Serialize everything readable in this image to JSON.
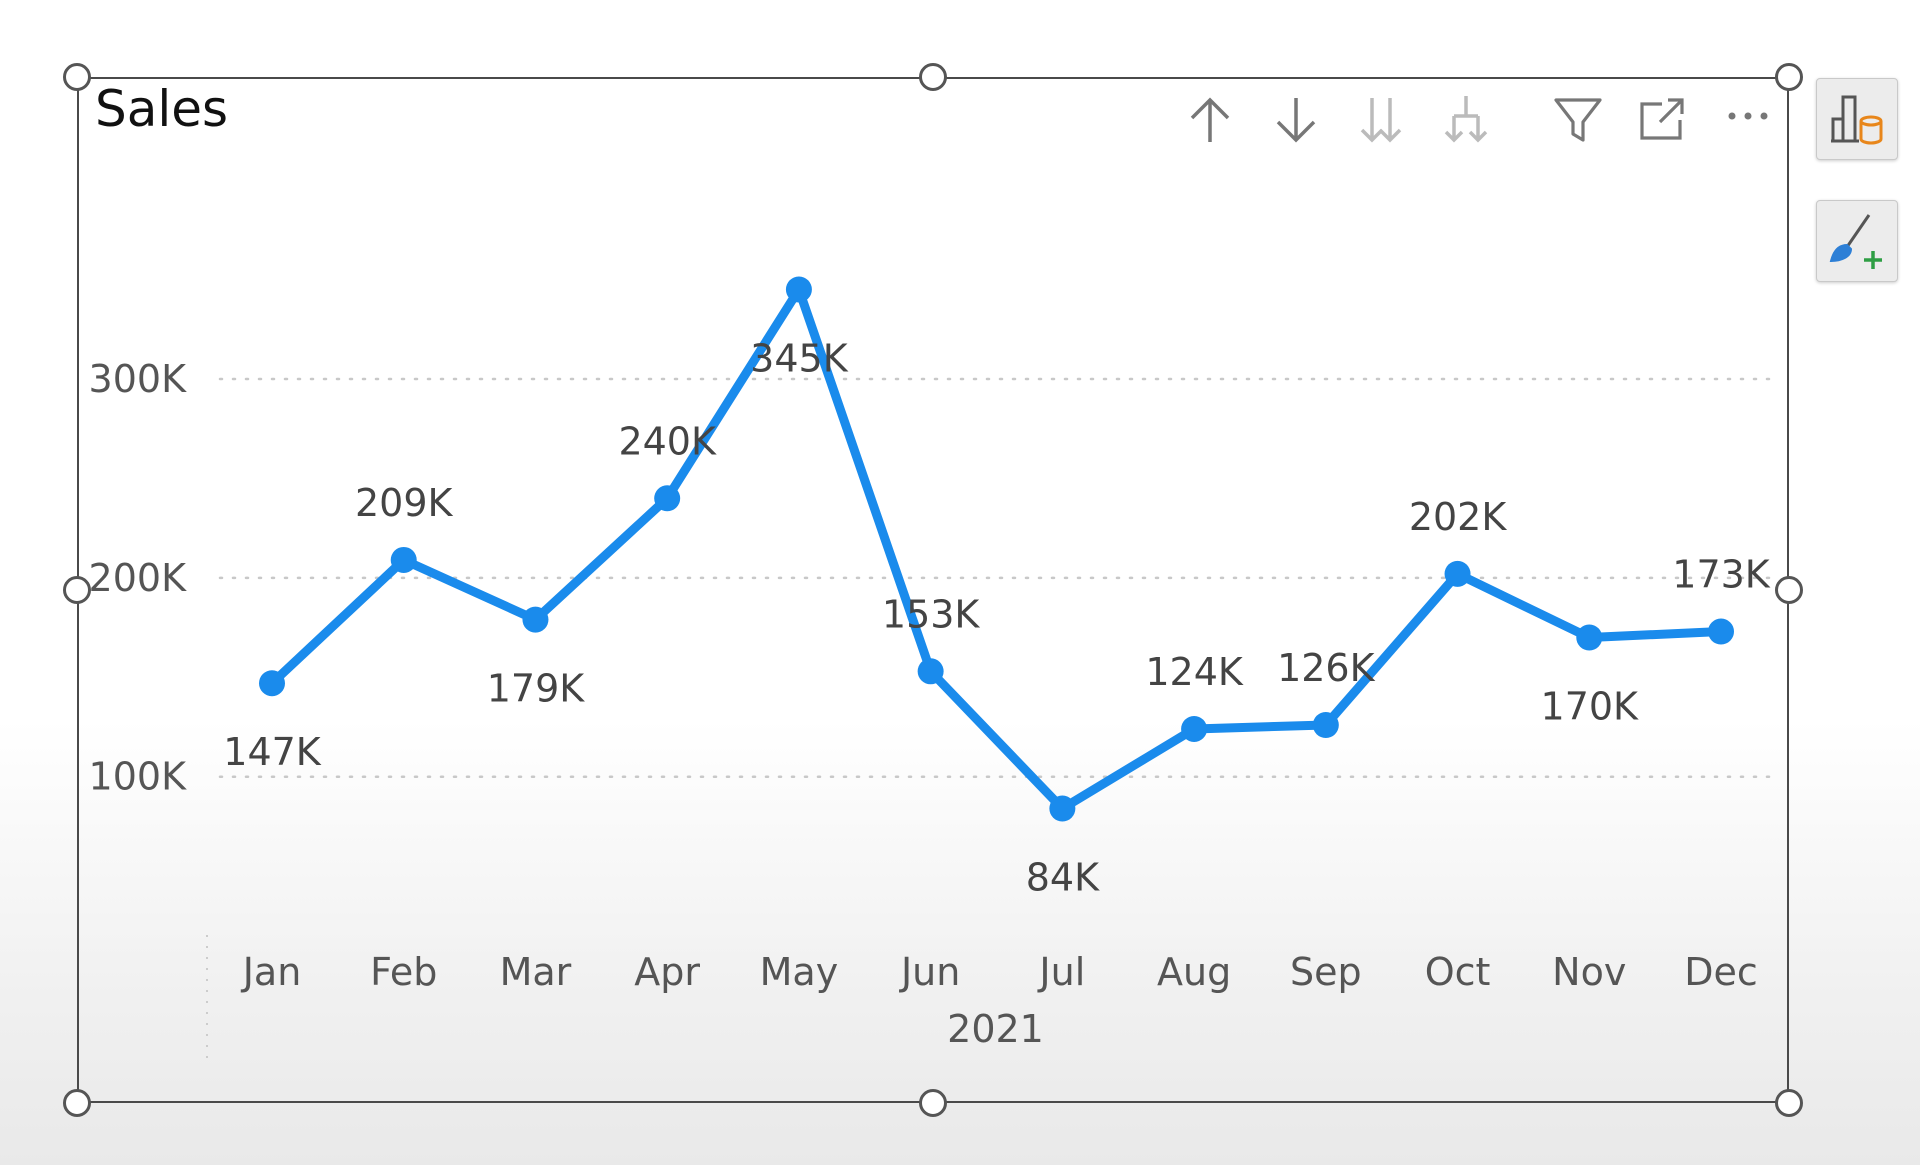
{
  "chart_data": {
    "type": "line",
    "title": "Sales",
    "x": [
      "Jan",
      "Feb",
      "Mar",
      "Apr",
      "May",
      "Jun",
      "Jul",
      "Aug",
      "Sep",
      "Oct",
      "Nov",
      "Dec"
    ],
    "xlabel": "2021",
    "ylabel": "",
    "series": [
      {
        "values": [
          147000,
          209000,
          179000,
          240000,
          345000,
          153000,
          84000,
          124000,
          126000,
          202000,
          170000,
          173000
        ]
      }
    ],
    "data_labels": [
      "147K",
      "209K",
      "179K",
      "240K",
      "345K",
      "153K",
      "84K",
      "124K",
      "126K",
      "202K",
      "170K",
      "173K"
    ],
    "label_placement": [
      "below",
      "above",
      "below",
      "above",
      "below",
      "above",
      "below",
      "above",
      "above",
      "above",
      "below",
      "above"
    ],
    "y_ticks": [
      100000,
      200000,
      300000
    ],
    "y_tick_labels": [
      "100K",
      "200K",
      "300K"
    ],
    "ylim": [
      38000,
      390000
    ],
    "grid": true,
    "line_color": "#1a8bec"
  },
  "toolbar": {
    "icons": [
      "arrow-up-icon",
      "arrow-down-icon",
      "double-arrow-down-icon",
      "expand-hierarchy-icon",
      "filter-icon",
      "focus-mode-icon",
      "more-options-icon"
    ]
  },
  "side_panel": {
    "icons": [
      "build-visual-icon",
      "format-visual-icon"
    ]
  },
  "colors": {
    "accent": "#1a8bec",
    "border": "#4a4a4a"
  }
}
